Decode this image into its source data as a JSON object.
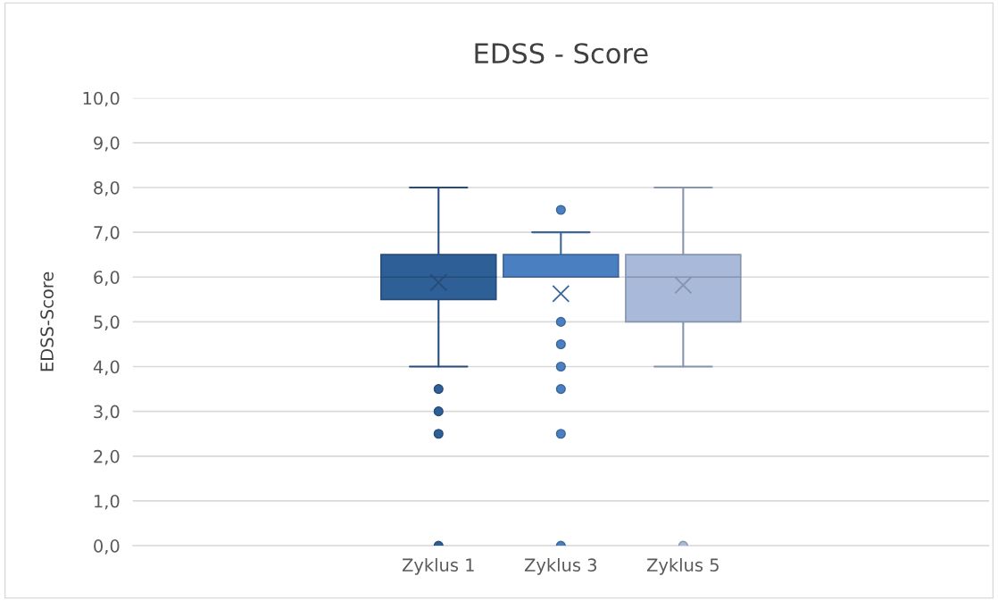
{
  "chart_data": {
    "type": "box",
    "title": "EDSS - Score",
    "ylabel": "EDSS-Score",
    "categories": [
      null,
      null,
      "Zyklus 1",
      "Zyklus 3",
      "Zyklus 5",
      null,
      null
    ],
    "colors": [
      null,
      null,
      "#2f5f97",
      "#4a7fc1",
      "#a8b9d9",
      null,
      null
    ],
    "boxes": [
      null,
      null,
      {
        "low": 4,
        "q1": 5.5,
        "median": 6,
        "q3": 6.5,
        "high": 8,
        "mean": 5.88,
        "outliers": [
          3.5,
          3,
          2.5,
          0
        ]
      },
      {
        "low": 6,
        "q1": 6,
        "median": 6,
        "q3": 6.5,
        "high": 7,
        "mean": 5.63,
        "outliers": [
          7.5,
          5,
          4.5,
          4,
          3.5,
          2.5,
          0
        ]
      },
      {
        "low": 4,
        "q1": 5,
        "median": 6,
        "q3": 6.5,
        "high": 8,
        "mean": 5.82,
        "outliers": [
          0
        ]
      },
      null,
      null
    ],
    "ylim": [
      0,
      10
    ],
    "yticks": [
      {
        "value": 0,
        "label": "0,0"
      },
      {
        "value": 1,
        "label": "1,0"
      },
      {
        "value": 2,
        "label": "2,0"
      },
      {
        "value": 3,
        "label": "3,0"
      },
      {
        "value": 4,
        "label": "4,0"
      },
      {
        "value": 5,
        "label": "5,0"
      },
      {
        "value": 6,
        "label": "6,0"
      },
      {
        "value": 7,
        "label": "7,0"
      },
      {
        "value": 8,
        "label": "8,0"
      },
      {
        "value": 9,
        "label": "9,0"
      },
      {
        "value": 10,
        "label": "10,0"
      }
    ],
    "grid": "y",
    "legend": false
  }
}
